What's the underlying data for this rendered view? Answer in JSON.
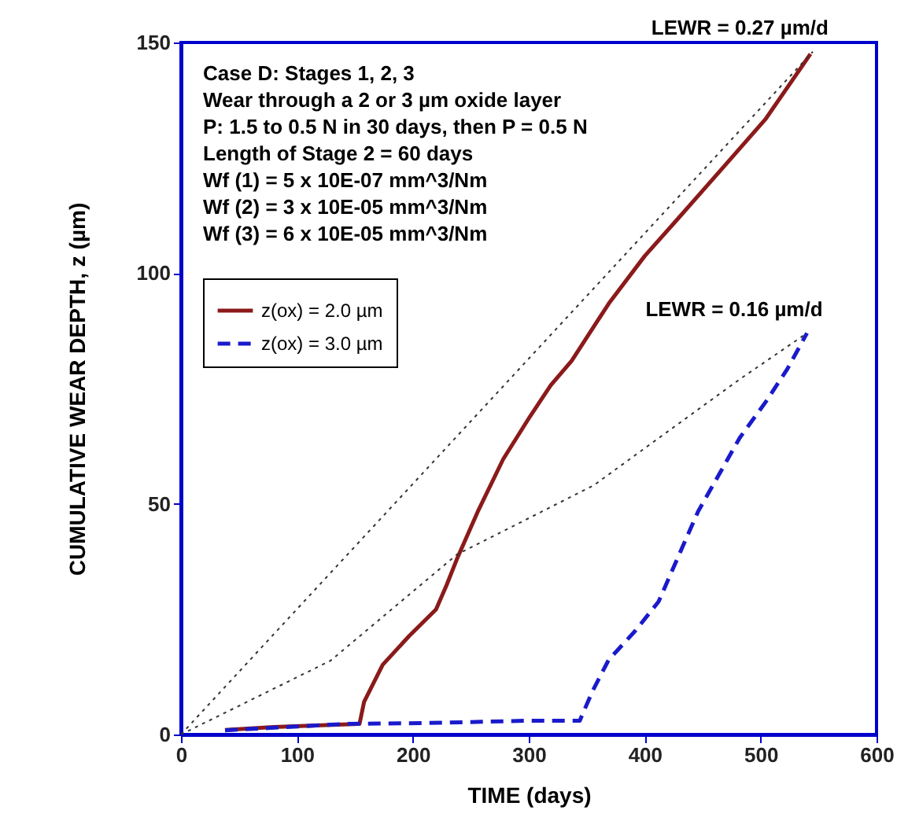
{
  "chart_data": {
    "type": "line",
    "xlabel": "TIME (days)",
    "ylabel": "CUMULATIVE WEAR DEPTH, z (µm)",
    "xlim": [
      0,
      600
    ],
    "xticks": [
      0,
      100,
      200,
      300,
      400,
      500,
      600
    ],
    "ylim": [
      0,
      150
    ],
    "yticks": [
      0,
      50,
      100,
      150
    ],
    "grid": false,
    "legend": "top left",
    "annotations": [
      "Case D:  Stages 1, 2, 3",
      "Wear through a 2 or 3 µm oxide layer",
      "P: 1.5 to 0.5 N in 30 days, then P = 0.5 N",
      "Length of Stage 2 = 60 days",
      "Wf (1) = 5 x 10E-07 mm^3/Nm",
      "Wf (2) = 3 x 10E-05 mm^3/Nm",
      "Wf (3) = 6 x 10E-05 mm^3/Nm",
      {
        "text": "LEWR = 0.27 µm/d",
        "x": 545,
        "y": 148
      },
      {
        "text": "LEWR = 0.16 µm/d",
        "x": 540,
        "y": 87
      }
    ],
    "series": [
      {
        "name": "z(ox) = 2.0 µm",
        "color": "#8b1a1a",
        "line_style": "solid",
        "x": [
          38,
          80,
          154,
          158,
          174,
          197,
          220,
          229,
          238,
          256,
          278,
          301,
          319,
          337,
          369,
          400,
          428,
          468,
          504,
          543
        ],
        "values": [
          1.0,
          1.6,
          2.3,
          7.1,
          15.1,
          21.4,
          27.1,
          32.3,
          38,
          48.3,
          59.7,
          68.9,
          75.7,
          81,
          93.4,
          103.7,
          111.6,
          123,
          133.3,
          147.5
        ]
      },
      {
        "name": "z(ox) = 3.0 µm",
        "color": "#1a1acc",
        "line_style": "dashed",
        "x": [
          38,
          75,
          143,
          215,
          301,
          344,
          355,
          369,
          392,
          412,
          428,
          446,
          464,
          482,
          505,
          523,
          540
        ],
        "values": [
          0.9,
          1.4,
          2.3,
          2.5,
          3.0,
          3.0,
          9.4,
          16.2,
          22.5,
          28.8,
          38,
          48.3,
          56.3,
          64.3,
          72.3,
          79.2,
          87
        ]
      },
      {
        "color": "#333333",
        "line_style": "dotted",
        "x": [
          0,
          545
        ],
        "values": [
          0,
          148
        ]
      },
      {
        "color": "#333333",
        "line_style": "dotted",
        "x": [
          0,
          129,
          238,
          356,
          482,
          540
        ],
        "values": [
          0,
          16,
          39,
          54,
          77,
          87
        ]
      }
    ]
  }
}
